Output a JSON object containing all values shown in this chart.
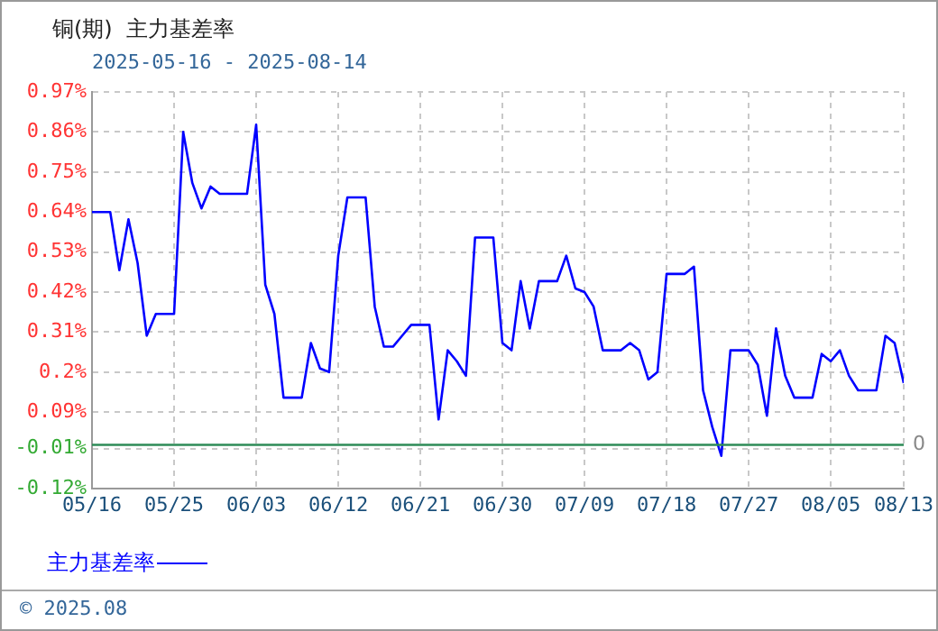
{
  "chart_data": {
    "type": "line",
    "title": "铜(期)  主力基差率",
    "subtitle": "2025-05-16 - 2025-08-14",
    "x": [
      "2025-05-16",
      "2025-05-17",
      "2025-05-18",
      "2025-05-19",
      "2025-05-20",
      "2025-05-21",
      "2025-05-22",
      "2025-05-23",
      "2025-05-24",
      "2025-05-25",
      "2025-05-26",
      "2025-05-27",
      "2025-05-28",
      "2025-05-29",
      "2025-05-30",
      "2025-05-31",
      "2025-06-01",
      "2025-06-02",
      "2025-06-03",
      "2025-06-04",
      "2025-06-05",
      "2025-06-06",
      "2025-06-07",
      "2025-06-08",
      "2025-06-09",
      "2025-06-10",
      "2025-06-11",
      "2025-06-12",
      "2025-06-13",
      "2025-06-14",
      "2025-06-15",
      "2025-06-16",
      "2025-06-17",
      "2025-06-18",
      "2025-06-19",
      "2025-06-20",
      "2025-06-21",
      "2025-06-22",
      "2025-06-23",
      "2025-06-24",
      "2025-06-25",
      "2025-06-26",
      "2025-06-27",
      "2025-06-28",
      "2025-06-29",
      "2025-06-30",
      "2025-07-01",
      "2025-07-02",
      "2025-07-03",
      "2025-07-04",
      "2025-07-05",
      "2025-07-06",
      "2025-07-07",
      "2025-07-08",
      "2025-07-09",
      "2025-07-10",
      "2025-07-11",
      "2025-07-12",
      "2025-07-13",
      "2025-07-14",
      "2025-07-15",
      "2025-07-16",
      "2025-07-17",
      "2025-07-18",
      "2025-07-19",
      "2025-07-20",
      "2025-07-21",
      "2025-07-22",
      "2025-07-23",
      "2025-07-24",
      "2025-07-25",
      "2025-07-26",
      "2025-07-27",
      "2025-07-28",
      "2025-07-29",
      "2025-07-30",
      "2025-07-31",
      "2025-08-01",
      "2025-08-02",
      "2025-08-03",
      "2025-08-04",
      "2025-08-05",
      "2025-08-06",
      "2025-08-07",
      "2025-08-08",
      "2025-08-09",
      "2025-08-10",
      "2025-08-11",
      "2025-08-12",
      "2025-08-13"
    ],
    "series": [
      {
        "name": "主力基差率",
        "color": "#0000ff",
        "values": [
          0.64,
          0.64,
          0.64,
          0.48,
          0.62,
          0.5,
          0.3,
          0.36,
          0.36,
          0.36,
          0.86,
          0.72,
          0.65,
          0.71,
          0.69,
          0.69,
          0.69,
          0.69,
          0.88,
          0.44,
          0.36,
          0.13,
          0.13,
          0.13,
          0.28,
          0.21,
          0.2,
          0.52,
          0.68,
          0.68,
          0.68,
          0.38,
          0.27,
          0.27,
          0.3,
          0.33,
          0.33,
          0.33,
          0.07,
          0.26,
          0.23,
          0.19,
          0.57,
          0.57,
          0.57,
          0.28,
          0.26,
          0.45,
          0.32,
          0.45,
          0.45,
          0.45,
          0.52,
          0.43,
          0.42,
          0.38,
          0.26,
          0.26,
          0.26,
          0.28,
          0.26,
          0.18,
          0.2,
          0.47,
          0.47,
          0.47,
          0.49,
          0.15,
          0.05,
          -0.03,
          0.26,
          0.26,
          0.26,
          0.22,
          0.08,
          0.32,
          0.19,
          0.13,
          0.13,
          0.13,
          0.25,
          0.23,
          0.26,
          0.19,
          0.15,
          0.15,
          0.15,
          0.3,
          0.28,
          0.17
        ]
      }
    ],
    "xlim": [
      "2025-05-16",
      "2025-08-13"
    ],
    "xticks": [
      {
        "value": "2025-05-16",
        "label": "05/16"
      },
      {
        "value": "2025-05-25",
        "label": "05/25"
      },
      {
        "value": "2025-06-03",
        "label": "06/03"
      },
      {
        "value": "2025-06-12",
        "label": "06/12"
      },
      {
        "value": "2025-06-21",
        "label": "06/21"
      },
      {
        "value": "2025-06-30",
        "label": "06/30"
      },
      {
        "value": "2025-07-09",
        "label": "07/09"
      },
      {
        "value": "2025-07-18",
        "label": "07/18"
      },
      {
        "value": "2025-07-27",
        "label": "07/27"
      },
      {
        "value": "2025-08-05",
        "label": "08/05"
      },
      {
        "value": "2025-08-13",
        "label": "08/13"
      }
    ],
    "ylim": [
      -0.12,
      0.97
    ],
    "yticks": [
      {
        "value": -0.12,
        "label": "-0.12%"
      },
      {
        "value": -0.01,
        "label": "-0.01%"
      },
      {
        "value": 0.09,
        "label": "0.09%"
      },
      {
        "value": 0.2,
        "label": "0.2%"
      },
      {
        "value": 0.31,
        "label": "0.31%"
      },
      {
        "value": 0.42,
        "label": "0.42%"
      },
      {
        "value": 0.53,
        "label": "0.53%"
      },
      {
        "value": 0.64,
        "label": "0.64%"
      },
      {
        "value": 0.75,
        "label": "0.75%"
      },
      {
        "value": 0.86,
        "label": "0.86%"
      },
      {
        "value": 0.97,
        "label": "0.97%"
      }
    ],
    "ref_lines": [
      {
        "axis": "y",
        "value": 0,
        "label": "0",
        "color": "#2e8b57"
      }
    ],
    "grid": true,
    "legend": "bottom",
    "marker": "none",
    "line_style": "solid",
    "annotations": [
      "© 2025.08"
    ]
  }
}
